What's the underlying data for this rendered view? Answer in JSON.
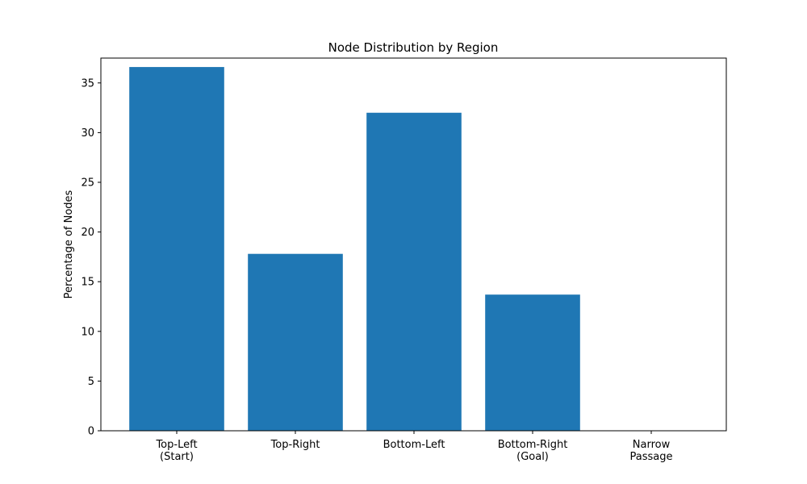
{
  "chart_data": {
    "type": "bar",
    "title": "Node Distribution by Region",
    "xlabel": "",
    "ylabel": "Percentage of Nodes",
    "categories": [
      [
        "Top-Left",
        "(Start)"
      ],
      [
        "Top-Right"
      ],
      [
        "Bottom-Left"
      ],
      [
        "Bottom-Right",
        "(Goal)"
      ],
      [
        "Narrow",
        "Passage"
      ]
    ],
    "values": [
      36.6,
      17.8,
      32.0,
      13.7,
      0
    ],
    "ylim": [
      0,
      37.5
    ],
    "yticks": [
      0,
      5,
      10,
      15,
      20,
      25,
      30,
      35
    ],
    "grid": false,
    "bar_color": "#1f77b4"
  }
}
